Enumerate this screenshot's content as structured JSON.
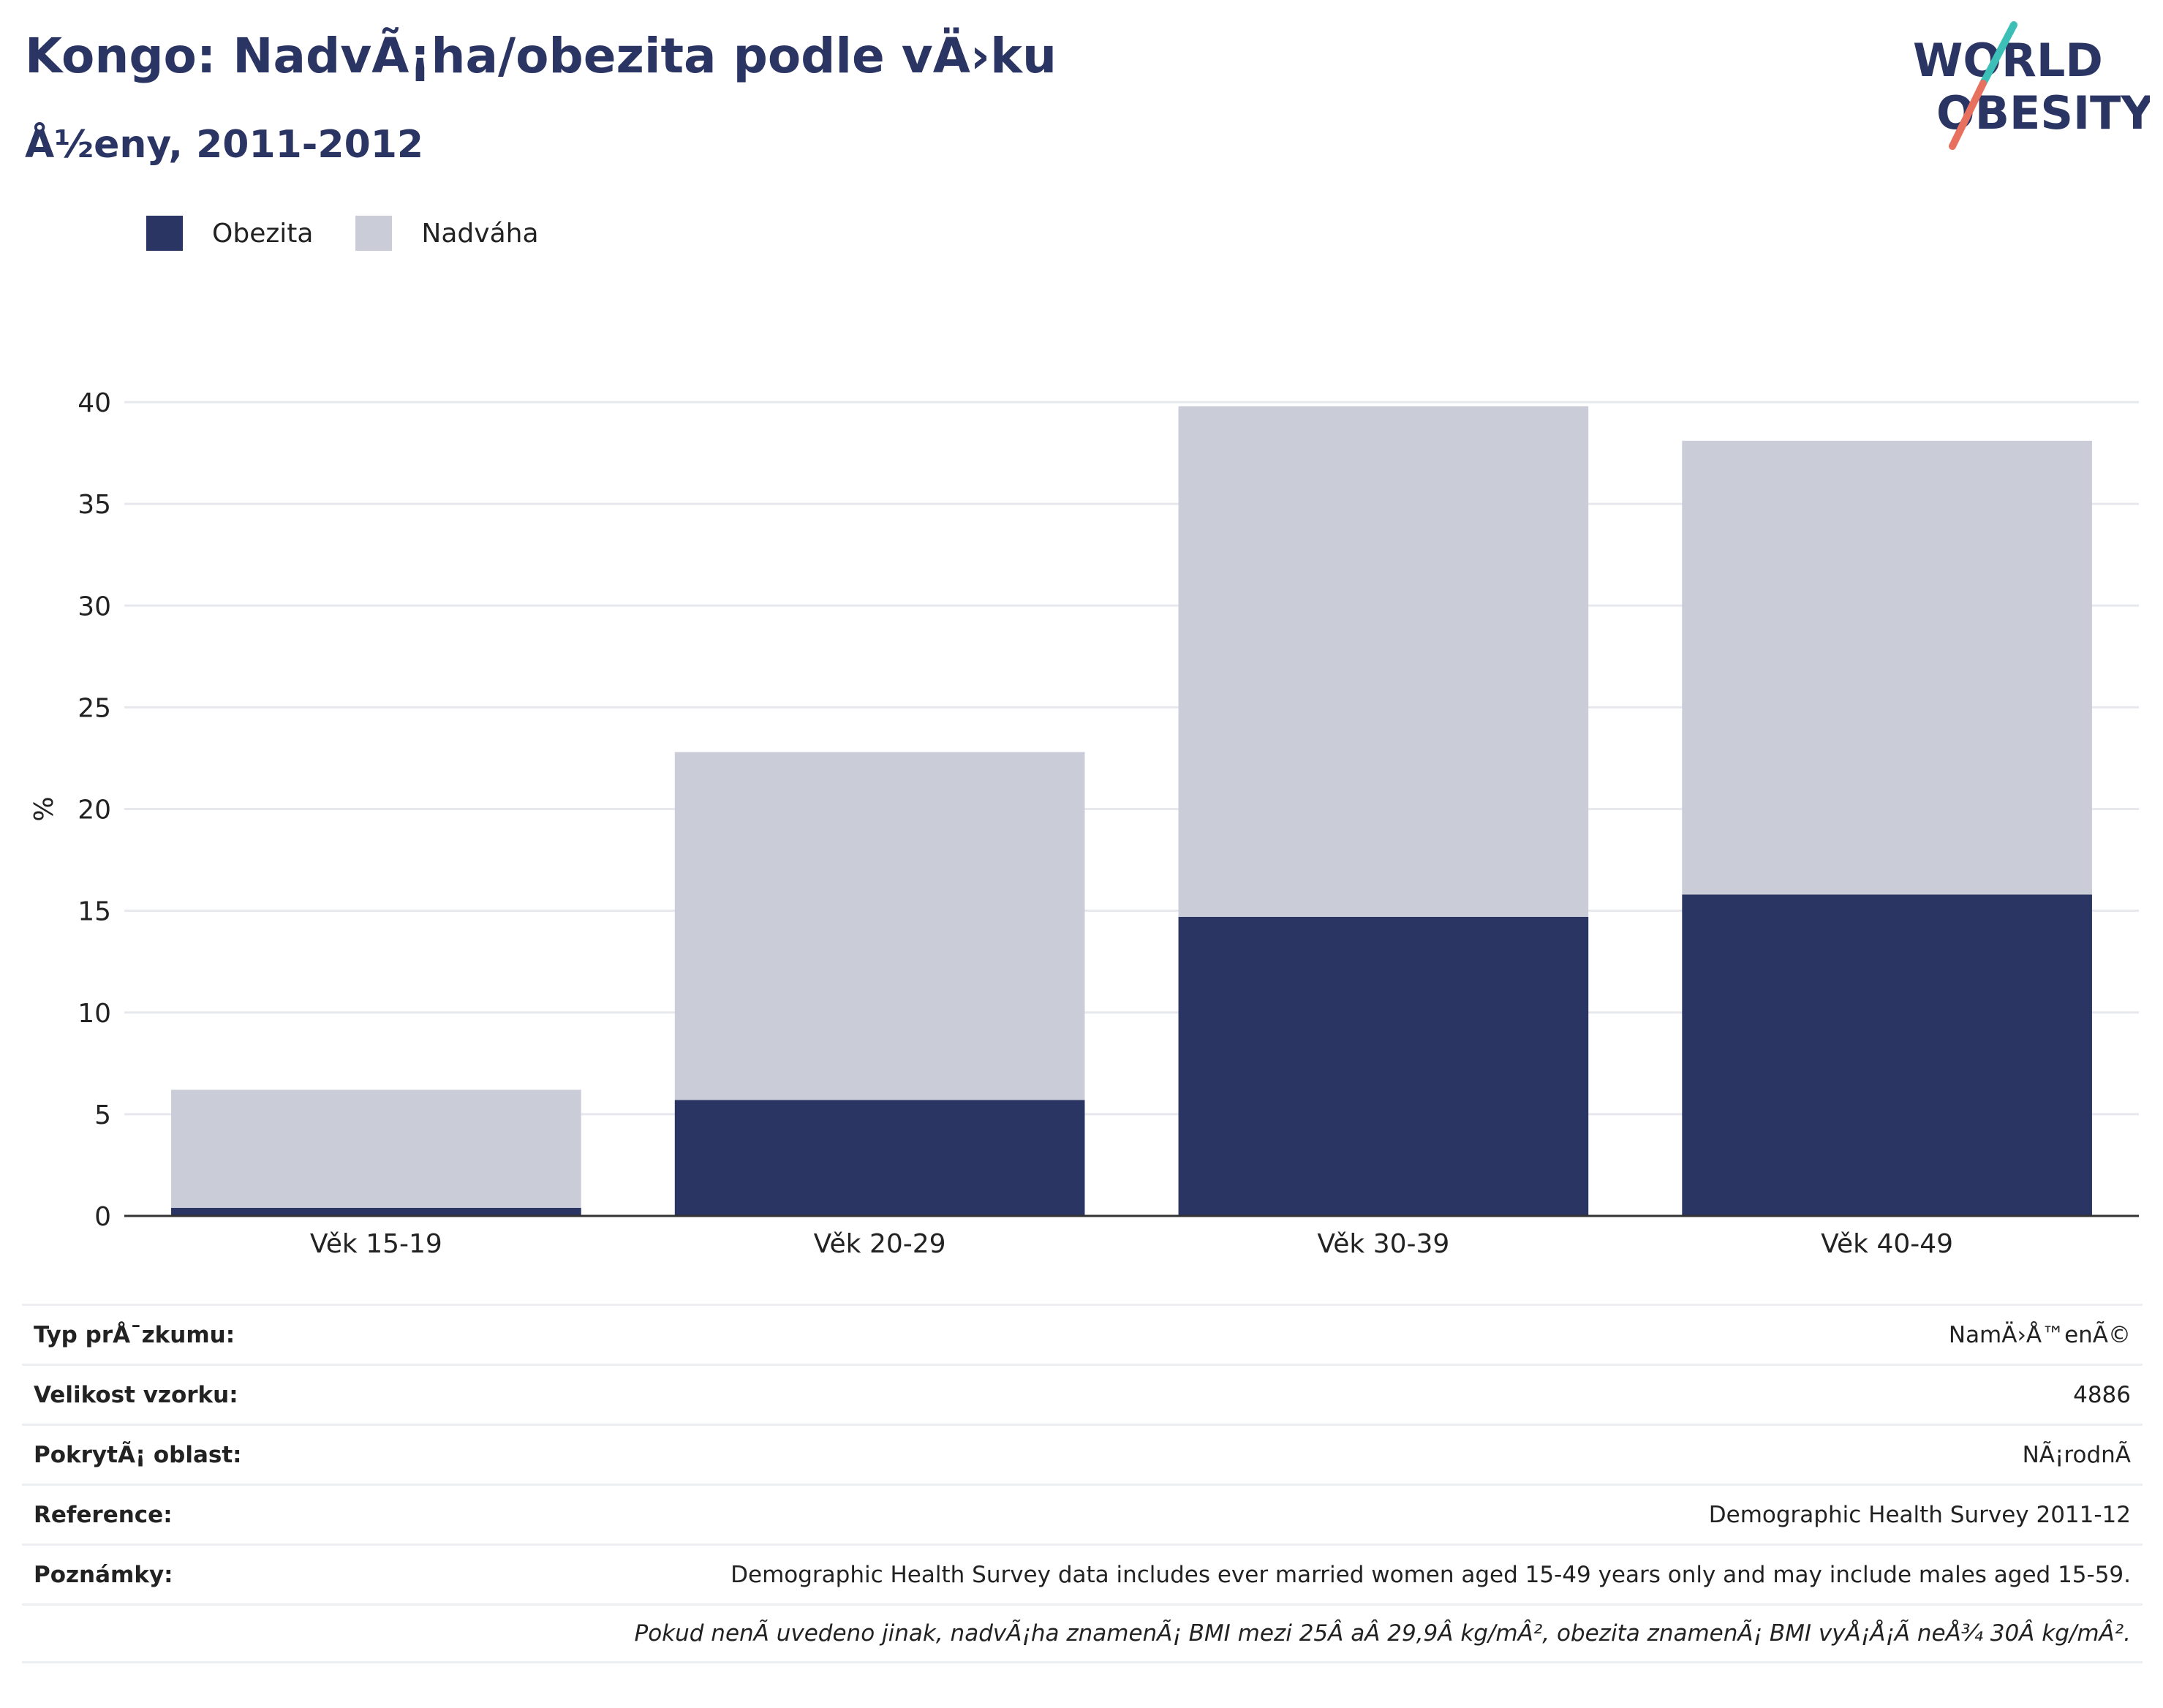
{
  "header": {
    "title": "Kongo: NadvÃ¡ha/obezita podle vÄ›ku",
    "subtitle": "Å½eny, 2011-2012"
  },
  "logo": {
    "line1": "WORLD",
    "line2": "OBESITY",
    "colors": {
      "text": "#2b3563",
      "slash_top": "#3bbfb6",
      "slash_bottom": "#e8705e"
    }
  },
  "legend": [
    {
      "label": "Obezita",
      "color": "#2b3563"
    },
    {
      "label": "Nadváha",
      "color": "#cacdd8"
    }
  ],
  "chart_data": {
    "type": "bar",
    "stacked": true,
    "categories": [
      "Věk 15-19",
      "Věk 20-29",
      "Věk 30-39",
      "Věk 40-49"
    ],
    "series": [
      {
        "name": "Obezita",
        "values": [
          0.4,
          5.7,
          14.7,
          15.8
        ],
        "color": "#2b3563"
      },
      {
        "name": "Nadváha",
        "values": [
          5.8,
          17.1,
          25.1,
          22.3
        ],
        "color": "#cacdd8"
      }
    ],
    "ylabel": "%",
    "ylim": [
      0,
      40
    ],
    "yticks": [
      0,
      5,
      10,
      15,
      20,
      25,
      30,
      35,
      40
    ],
    "grid": true
  },
  "info_rows": [
    {
      "key": "Typ prÅ¯zkumu:",
      "value": "NamÄ›Å™enÃ©"
    },
    {
      "key": "Velikost vzorku:",
      "value": "4886"
    },
    {
      "key": "PokrytÃ¡ oblast:",
      "value": "NÃ¡rodnÃ"
    },
    {
      "key": "Reference:",
      "value": "Demographic Health Survey 2011-12"
    },
    {
      "key": "Poznámky:",
      "value": "Demographic Health Survey data includes ever married women aged 15-49 years only and may include males aged 15-59."
    }
  ],
  "footnote": "Pokud nenÃ uvedeno jinak, nadvÃ¡ha znamenÃ¡ BMI mezi 25Â aÂ 29,9Â kg/mÂ², obezita znamenÃ¡ BMI vyÅ¡Å¡Ã neÅ¾ 30Â kg/mÂ²."
}
